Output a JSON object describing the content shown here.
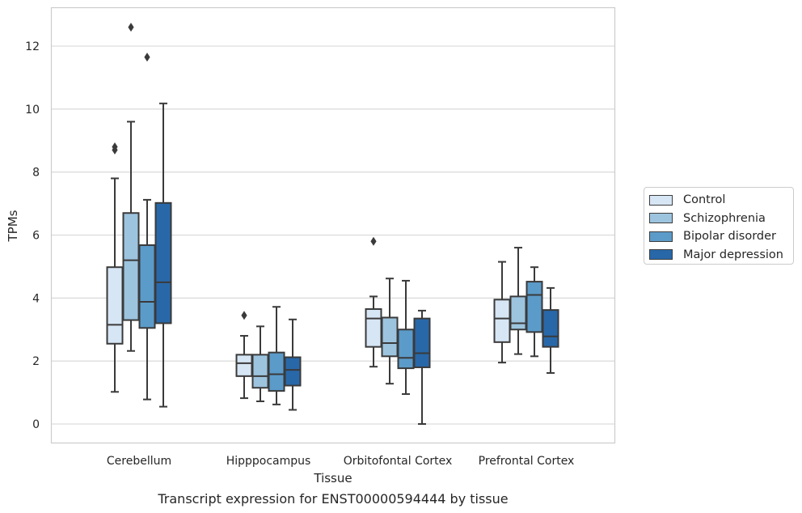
{
  "chart_data": {
    "type": "box",
    "caption": "Transcript expression for ENST00000594444 by tissue",
    "xlabel": "Tissue",
    "ylabel": "TPMs",
    "ylim": [
      -0.6,
      13.2
    ],
    "yticks": [
      "0",
      "2",
      "4",
      "6",
      "8",
      "10",
      "12"
    ],
    "grid": true,
    "legend_position": "right",
    "categories": [
      "Cerebellum",
      "Hipppocampus",
      "Orbitofontal Cortex",
      "Prefrontal Cortex"
    ],
    "series": [
      {
        "name": "Control",
        "color": "#d7e6f4",
        "boxes": [
          {
            "whisker_low": 1.02,
            "q1": 2.55,
            "median": 3.15,
            "q3": 4.98,
            "whisker_high": 7.8,
            "outliers": [
              8.7,
              8.8
            ]
          },
          {
            "whisker_low": 0.82,
            "q1": 1.52,
            "median": 1.93,
            "q3": 2.2,
            "whisker_high": 2.8,
            "outliers": [
              3.45
            ]
          },
          {
            "whisker_low": 1.82,
            "q1": 2.45,
            "median": 3.35,
            "q3": 3.65,
            "whisker_high": 4.05,
            "outliers": [
              5.8
            ]
          },
          {
            "whisker_low": 1.95,
            "q1": 2.6,
            "median": 3.35,
            "q3": 3.95,
            "whisker_high": 5.15,
            "outliers": []
          }
        ]
      },
      {
        "name": "Schizophrenia",
        "color": "#9dc4de",
        "boxes": [
          {
            "whisker_low": 2.32,
            "q1": 3.3,
            "median": 5.2,
            "q3": 6.7,
            "whisker_high": 9.6,
            "outliers": [
              12.6
            ]
          },
          {
            "whisker_low": 0.72,
            "q1": 1.15,
            "median": 1.52,
            "q3": 2.2,
            "whisker_high": 3.1,
            "outliers": []
          },
          {
            "whisker_low": 1.28,
            "q1": 2.15,
            "median": 2.57,
            "q3": 3.38,
            "whisker_high": 4.62,
            "outliers": []
          },
          {
            "whisker_low": 2.22,
            "q1": 3.0,
            "median": 3.2,
            "q3": 4.05,
            "whisker_high": 5.6,
            "outliers": []
          }
        ]
      },
      {
        "name": "Bipolar disorder",
        "color": "#5b9bc9",
        "boxes": [
          {
            "whisker_low": 0.78,
            "q1": 3.05,
            "median": 3.88,
            "q3": 5.68,
            "whisker_high": 7.12,
            "outliers": [
              11.65
            ]
          },
          {
            "whisker_low": 0.62,
            "q1": 1.05,
            "median": 1.58,
            "q3": 2.27,
            "whisker_high": 3.72,
            "outliers": []
          },
          {
            "whisker_low": 0.95,
            "q1": 1.77,
            "median": 2.1,
            "q3": 3.0,
            "whisker_high": 4.55,
            "outliers": []
          },
          {
            "whisker_low": 2.15,
            "q1": 2.92,
            "median": 4.1,
            "q3": 4.52,
            "whisker_high": 4.98,
            "outliers": []
          }
        ]
      },
      {
        "name": "Major depression",
        "color": "#2868a9",
        "boxes": [
          {
            "whisker_low": 0.55,
            "q1": 3.2,
            "median": 4.5,
            "q3": 7.02,
            "whisker_high": 10.18,
            "outliers": []
          },
          {
            "whisker_low": 0.45,
            "q1": 1.22,
            "median": 1.72,
            "q3": 2.12,
            "whisker_high": 3.32,
            "outliers": []
          },
          {
            "whisker_low": 0.0,
            "q1": 1.8,
            "median": 2.25,
            "q3": 3.35,
            "whisker_high": 3.6,
            "outliers": []
          },
          {
            "whisker_low": 1.62,
            "q1": 2.45,
            "median": 2.78,
            "q3": 3.62,
            "whisker_high": 4.32,
            "outliers": []
          }
        ]
      }
    ]
  }
}
